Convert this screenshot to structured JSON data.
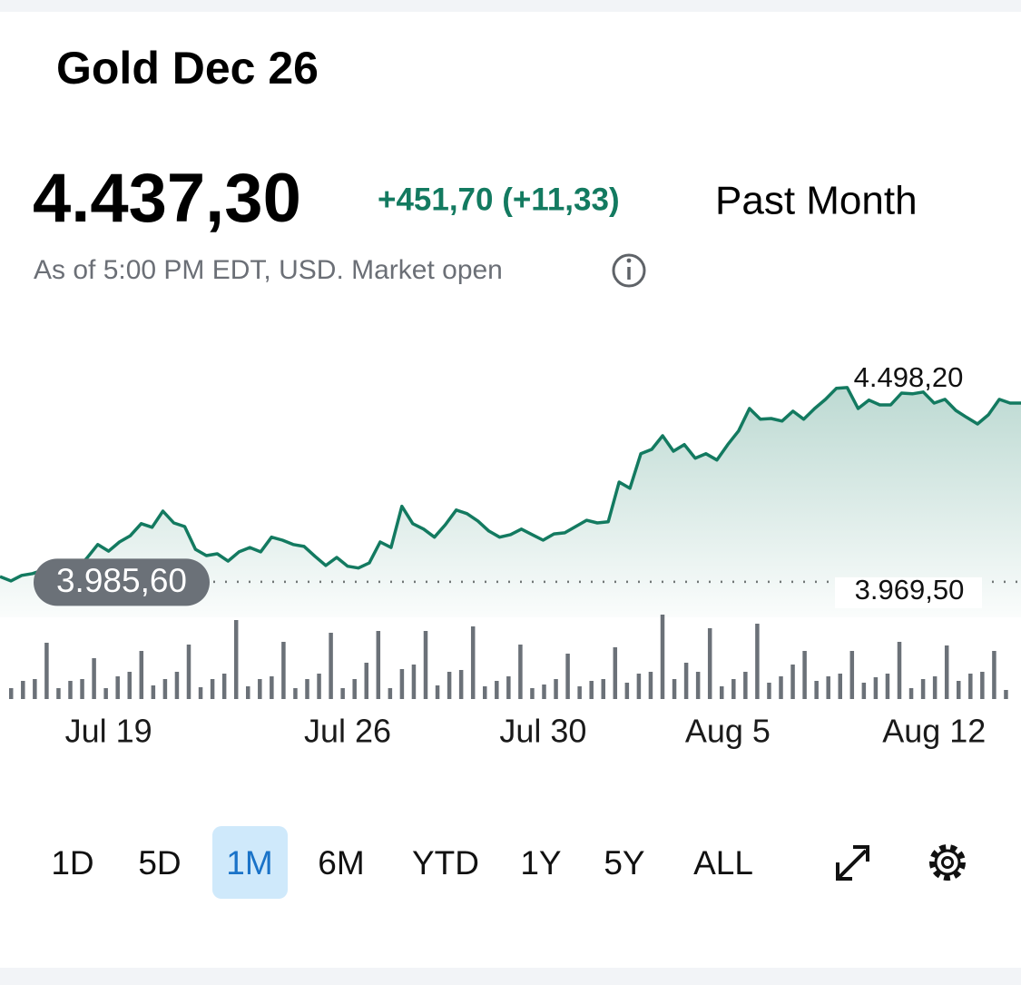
{
  "header": {
    "title": "Gold Dec 26"
  },
  "quote": {
    "price": "4.437,30",
    "change": "+451,70 (+11,33)",
    "period": "Past Month",
    "note": "As of 5:00 PM EDT, USD. Market open"
  },
  "chart_data": {
    "type": "line",
    "color": "#137a60",
    "values": [
      3984,
      3972,
      3987,
      3992,
      4002,
      4002,
      4007,
      4002,
      4034,
      4071,
      4053,
      4078,
      4095,
      4128,
      4118,
      4162,
      4130,
      4120,
      4058,
      4041,
      4046,
      4026,
      4051,
      4063,
      4051,
      4091,
      4083,
      4071,
      4066,
      4039,
      4014,
      4036,
      4012,
      4007,
      4021,
      4078,
      4063,
      4175,
      4128,
      4113,
      4091,
      4125,
      4165,
      4155,
      4135,
      4108,
      4091,
      4098,
      4113,
      4098,
      4083,
      4100,
      4103,
      4120,
      4137,
      4130,
      4133,
      4241,
      4224,
      4318,
      4330,
      4367,
      4325,
      4343,
      4306,
      4318,
      4301,
      4343,
      4380,
      4441,
      4412,
      4414,
      4407,
      4434,
      4412,
      4441,
      4466,
      4496,
      4498.2,
      4441,
      4464,
      4451,
      4451,
      4483,
      4481,
      4486,
      4456,
      4466,
      4436,
      4417,
      4399,
      4424,
      4466,
      4456,
      4456
    ],
    "xlim": [
      0,
      94
    ],
    "ylim": [
      3873,
      4614
    ],
    "xticks": [
      {
        "value": 10,
        "label": "Jul 19"
      },
      {
        "value": 32,
        "label": "Jul 26"
      },
      {
        "value": 50,
        "label": "Jul 30"
      },
      {
        "value": 67,
        "label": "Aug 5"
      },
      {
        "value": 86,
        "label": "Aug 12"
      }
    ],
    "high": {
      "value": 4498.2,
      "label": "4.498,20"
    },
    "previous_close": {
      "value": 3969.5,
      "label": "3.969,50"
    },
    "start": {
      "value": 3985.6,
      "label": "3.985,60"
    },
    "volume": {
      "color": "#6b7178",
      "y2lim": [
        0,
        100
      ],
      "values": [
        12,
        20,
        22,
        62,
        12,
        20,
        22,
        45,
        12,
        25,
        30,
        53,
        15,
        22,
        30,
        60,
        13,
        22,
        28,
        87,
        14,
        22,
        25,
        63,
        12,
        22,
        28,
        73,
        12,
        22,
        40,
        75,
        12,
        33,
        38,
        75,
        15,
        30,
        32,
        80,
        14,
        20,
        25,
        60,
        12,
        16,
        22,
        50,
        14,
        20,
        22,
        57,
        18,
        28,
        30,
        93,
        22,
        40,
        30,
        78,
        14,
        22,
        30,
        83,
        18,
        25,
        38,
        53,
        20,
        25,
        28,
        53,
        18,
        24,
        28,
        63,
        12,
        22,
        25,
        59,
        20,
        28,
        30,
        53,
        10
      ]
    }
  },
  "range_buttons": {
    "items": [
      "1D",
      "5D",
      "1M",
      "6M",
      "YTD",
      "1Y",
      "5Y",
      "ALL"
    ],
    "selected": 2
  }
}
